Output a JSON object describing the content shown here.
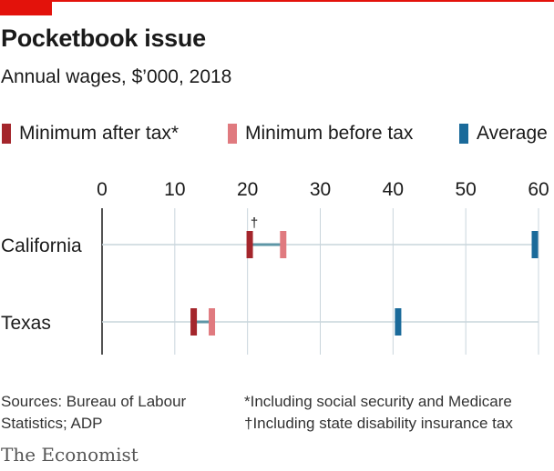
{
  "header": {
    "title": "Pocketbook issue",
    "subtitle": "Annual wages, $’000, 2018"
  },
  "legend": [
    {
      "label": "Minimum after tax*",
      "color": "#a4262c"
    },
    {
      "label": "Minimum before tax",
      "color": "#e07a7f"
    },
    {
      "label": "Average",
      "color": "#1a6a9a"
    }
  ],
  "chart_data": {
    "type": "dot-range",
    "xlim": [
      0,
      60
    ],
    "ticks": [
      0,
      10,
      20,
      30,
      40,
      50,
      60
    ],
    "grid": true,
    "legend_position": "top",
    "categories": [
      "California",
      "Texas"
    ],
    "series": [
      {
        "name": "Minimum after tax*",
        "values": [
          20.3,
          12.6
        ]
      },
      {
        "name": "Minimum before tax",
        "values": [
          24.9,
          15.1
        ]
      },
      {
        "name": "Average",
        "values": [
          59.5,
          40.7
        ]
      }
    ],
    "annotations": [
      {
        "category": "California",
        "series": "Minimum after tax*",
        "text": "†"
      }
    ]
  },
  "footer": {
    "source_line1": "Sources: Bureau of Labour",
    "source_line2": "Statistics; ADP",
    "note1": "*Including social security and Medicare",
    "note2": "†Including state disability insurance tax",
    "brand": "The Economist"
  },
  "colors": {
    "accent": "#e3120b",
    "grid": "#c9d5dc",
    "connector": "#5d96a6",
    "axis": "#1a1a1a"
  }
}
